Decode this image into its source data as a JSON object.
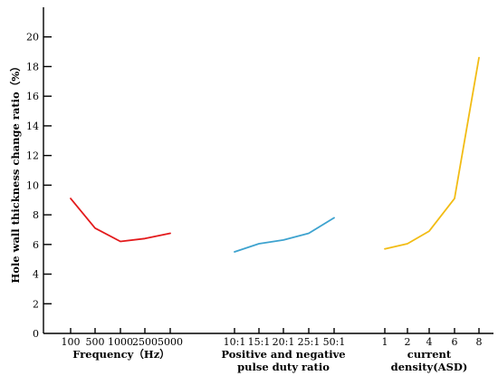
{
  "chart_data": {
    "type": "line",
    "ylabel": "Hole wall thickness change ratio（%）",
    "ylim": [
      0,
      22
    ],
    "yticks": [
      0,
      2,
      4,
      6,
      8,
      10,
      12,
      14,
      16,
      18,
      20
    ],
    "grid": false,
    "legend": "none",
    "panels": [
      {
        "xlabel_lines": [
          "Frequency（Hz）"
        ],
        "categories": [
          "100",
          "500",
          "1000",
          "2500",
          "5000"
        ],
        "series": [
          {
            "color": "#e31a1c",
            "values": [
              9.1,
              7.1,
              6.2,
              6.4,
              6.75
            ]
          }
        ]
      },
      {
        "xlabel_lines": [
          "Positive and negative",
          "pulse duty ratio"
        ],
        "categories": [
          "10:1",
          "15:1",
          "20:1",
          "25:1",
          "50:1"
        ],
        "series": [
          {
            "color": "#3ea3cf",
            "values": [
              5.5,
              6.05,
              6.3,
              6.75,
              7.8
            ]
          }
        ]
      },
      {
        "xlabel_lines": [
          "current",
          "density(ASD)"
        ],
        "categories": [
          "1",
          "2",
          "4",
          "6",
          "8"
        ],
        "series": [
          {
            "color": "#f2bc14",
            "values": [
              5.7,
              6.05,
              6.9,
              9.1,
              18.6
            ]
          }
        ]
      }
    ]
  }
}
